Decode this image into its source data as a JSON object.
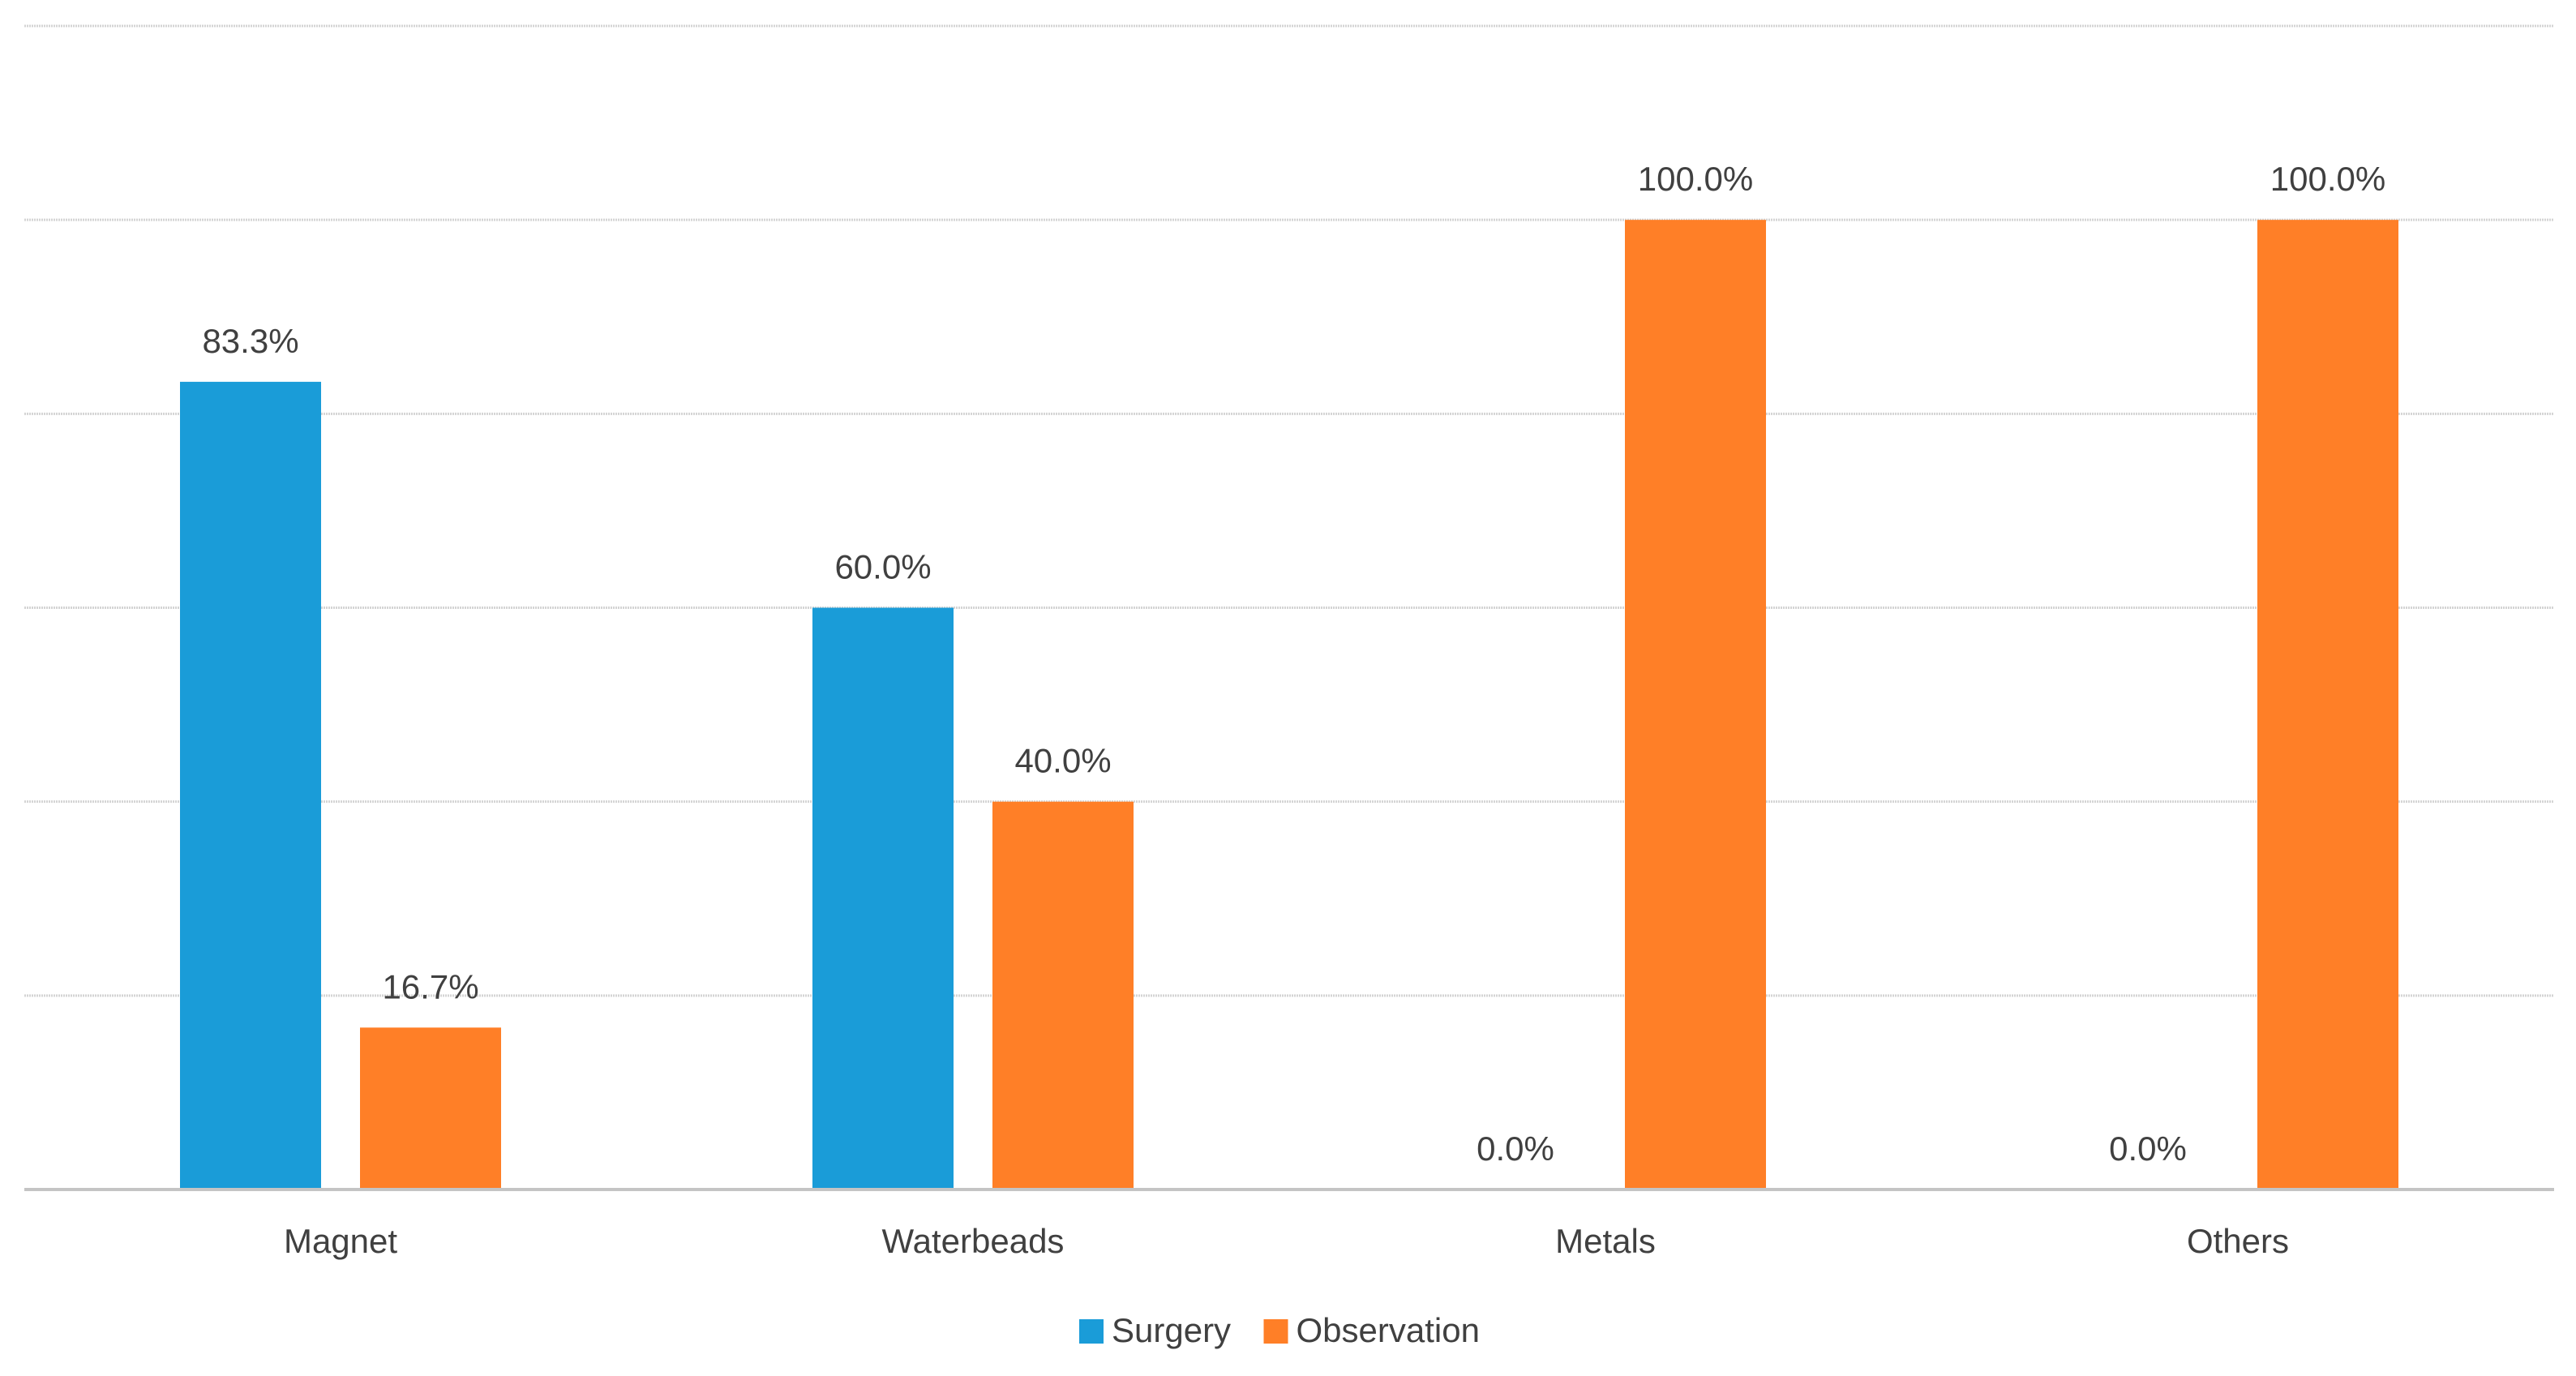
{
  "chart_data": {
    "type": "bar",
    "title": "",
    "xlabel": "",
    "ylabel": "",
    "categories": [
      "Magnet",
      "Waterbeads",
      "Metals",
      "Others"
    ],
    "series": [
      {
        "name": "Surgery",
        "color": "#1a9cd8",
        "values": [
          83.3,
          60.0,
          0.0,
          0.0
        ],
        "labels": [
          "83.3%",
          "60.0%",
          "0.0%",
          "0.0%"
        ]
      },
      {
        "name": "Observation",
        "color": "#ff7f27",
        "values": [
          16.7,
          40.0,
          100.0,
          100.0
        ],
        "labels": [
          "16.7%",
          "40.0%",
          "100.0%",
          "100.0%"
        ]
      }
    ],
    "ylim": [
      0,
      120
    ],
    "gridlines": [
      20,
      40,
      60,
      80,
      100,
      120
    ],
    "y_tick_labels_shown": false,
    "grid": true,
    "legend": "bottom-center"
  }
}
